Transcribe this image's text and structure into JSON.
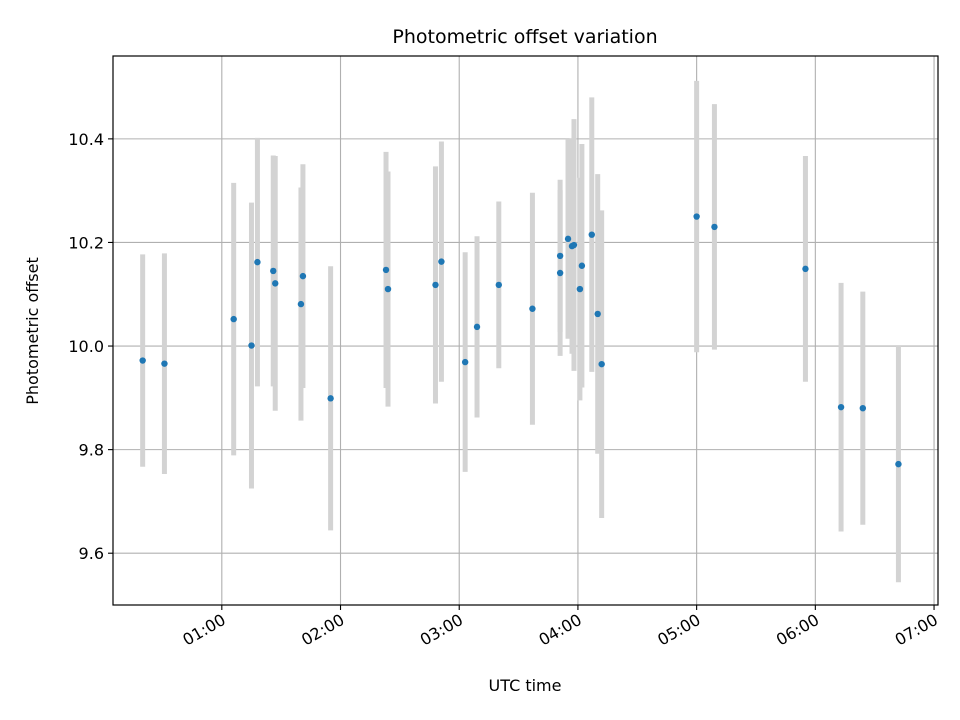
{
  "chart_data": {
    "type": "scatter",
    "title": "Photometric offset variation",
    "xlabel": "UTC time",
    "ylabel": "Photometric offset",
    "xlim": [
      "00:05",
      "07:02"
    ],
    "ylim": [
      9.5,
      10.56
    ],
    "x_ticks": [
      "01:00",
      "02:00",
      "03:00",
      "04:00",
      "05:00",
      "06:00",
      "07:00"
    ],
    "y_ticks": [
      "9.6",
      "9.8",
      "10.0",
      "10.2",
      "10.4"
    ],
    "grid": true,
    "legend": "none",
    "colors": {
      "point": "#1f77b4",
      "errorbar": "#d3d3d3",
      "grid": "#b0b0b0"
    },
    "points": [
      {
        "x": "00:20",
        "y": 9.972,
        "err": 0.205
      },
      {
        "x": "00:31",
        "y": 9.966,
        "err": 0.213
      },
      {
        "x": "01:06",
        "y": 10.052,
        "err": 0.263
      },
      {
        "x": "01:15",
        "y": 10.001,
        "err": 0.276
      },
      {
        "x": "01:18",
        "y": 10.162,
        "err": 0.24
      },
      {
        "x": "01:26",
        "y": 10.145,
        "err": 0.223
      },
      {
        "x": "01:27",
        "y": 10.121,
        "err": 0.246
      },
      {
        "x": "01:40",
        "y": 10.081,
        "err": 0.225
      },
      {
        "x": "01:41",
        "y": 10.135,
        "err": 0.216
      },
      {
        "x": "01:55",
        "y": 9.899,
        "err": 0.255
      },
      {
        "x": "02:23",
        "y": 10.147,
        "err": 0.228
      },
      {
        "x": "02:24",
        "y": 10.11,
        "err": 0.227
      },
      {
        "x": "02:48",
        "y": 10.118,
        "err": 0.229
      },
      {
        "x": "02:51",
        "y": 10.163,
        "err": 0.232
      },
      {
        "x": "03:03",
        "y": 9.969,
        "err": 0.212
      },
      {
        "x": "03:09",
        "y": 10.037,
        "err": 0.175
      },
      {
        "x": "03:20",
        "y": 10.118,
        "err": 0.161
      },
      {
        "x": "03:37",
        "y": 10.072,
        "err": 0.224
      },
      {
        "x": "03:51",
        "y": 10.174,
        "err": 0.147
      },
      {
        "x": "03:51",
        "y": 10.141,
        "err": 0.16
      },
      {
        "x": "03:55",
        "y": 10.207,
        "err": 0.193
      },
      {
        "x": "03:57",
        "y": 10.193,
        "err": 0.208
      },
      {
        "x": "03:58",
        "y": 10.195,
        "err": 0.243
      },
      {
        "x": "04:01",
        "y": 10.11,
        "err": 0.215
      },
      {
        "x": "04:02",
        "y": 10.155,
        "err": 0.235
      },
      {
        "x": "04:07",
        "y": 10.215,
        "err": 0.265
      },
      {
        "x": "04:10",
        "y": 10.062,
        "err": 0.27
      },
      {
        "x": "04:12",
        "y": 9.965,
        "err": 0.297
      },
      {
        "x": "05:00",
        "y": 10.25,
        "err": 0.262
      },
      {
        "x": "05:09",
        "y": 10.23,
        "err": 0.237
      },
      {
        "x": "05:55",
        "y": 10.149,
        "err": 0.218
      },
      {
        "x": "06:13",
        "y": 9.882,
        "err": 0.24
      },
      {
        "x": "06:24",
        "y": 9.88,
        "err": 0.225
      },
      {
        "x": "06:42",
        "y": 9.772,
        "err": 0.228
      }
    ]
  }
}
